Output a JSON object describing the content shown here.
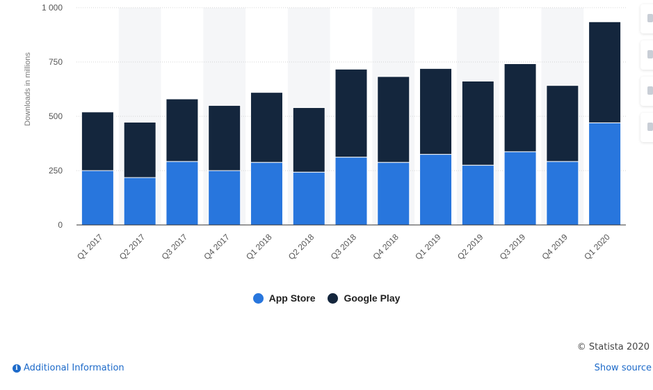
{
  "chart_data": {
    "type": "bar",
    "stacked": true,
    "categories": [
      "Q1 2017",
      "Q2 2017",
      "Q3 2017",
      "Q4 2017",
      "Q1 2018",
      "Q2 2018",
      "Q3 2018",
      "Q4 2018",
      "Q1 2019",
      "Q2 2019",
      "Q3 2019",
      "Q4 2019",
      "Q1 2020"
    ],
    "series": [
      {
        "name": "App Store",
        "color": "#2876dd",
        "values": [
          250,
          218,
          292,
          250,
          288,
          243,
          312,
          288,
          325,
          275,
          337,
          292,
          470
        ]
      },
      {
        "name": "Google Play",
        "color": "#14263d",
        "values": [
          270,
          255,
          288,
          300,
          322,
          297,
          405,
          395,
          395,
          387,
          405,
          350,
          465
        ]
      }
    ],
    "ylabel": "Downloads in millions",
    "ylim": [
      0,
      1000
    ],
    "yticks": [
      0,
      250,
      500,
      750,
      1000
    ],
    "ytick_labels": [
      "0",
      "250",
      "500",
      "750",
      "1 000"
    ],
    "grid": true,
    "legend_position": "bottom"
  },
  "legend": {
    "app_store": "App Store",
    "google_play": "Google Play"
  },
  "footer": {
    "copyright": "© Statista 2020",
    "additional_info": "Additional Information",
    "show_source": "Show source"
  },
  "side_tools": {
    "icons": [
      "plus-icon",
      "bell-icon",
      "quote-icon",
      "share-icon"
    ]
  }
}
